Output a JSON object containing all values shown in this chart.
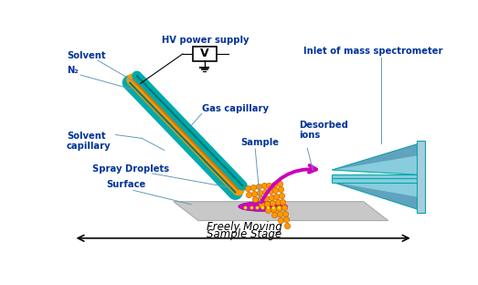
{
  "bg_color": "#ffffff",
  "label_color": "#003399",
  "labels": {
    "solvent": "Solvent",
    "n2": "N₂",
    "hv": "HV power supply",
    "gas_cap": "Gas capillary",
    "solvent_cap": "Solvent\ncapillary",
    "spray": "Spray Droplets",
    "surface": "Surface",
    "sample": "Sample",
    "desorbed": "Desorbed\nions",
    "inlet": "Inlet of mass spectrometer",
    "freely": "Freely Moving\nSample Stage"
  },
  "teal": "#00aaaa",
  "orange": "#ff9900",
  "droplet_color": "#ff9900",
  "droplet_edge": "#cc6600",
  "surface_color": "#c8c8c8",
  "spot_color": "#cc00bb",
  "arrow_color": "#cc00bb",
  "ms_light": "#88ccdd",
  "ms_dark": "#4488aa",
  "ms_mid": "#5599bb",
  "wire_color": "#000000",
  "hv_box_color": "#ffffff",
  "bottom_arrow_color": "#000000"
}
